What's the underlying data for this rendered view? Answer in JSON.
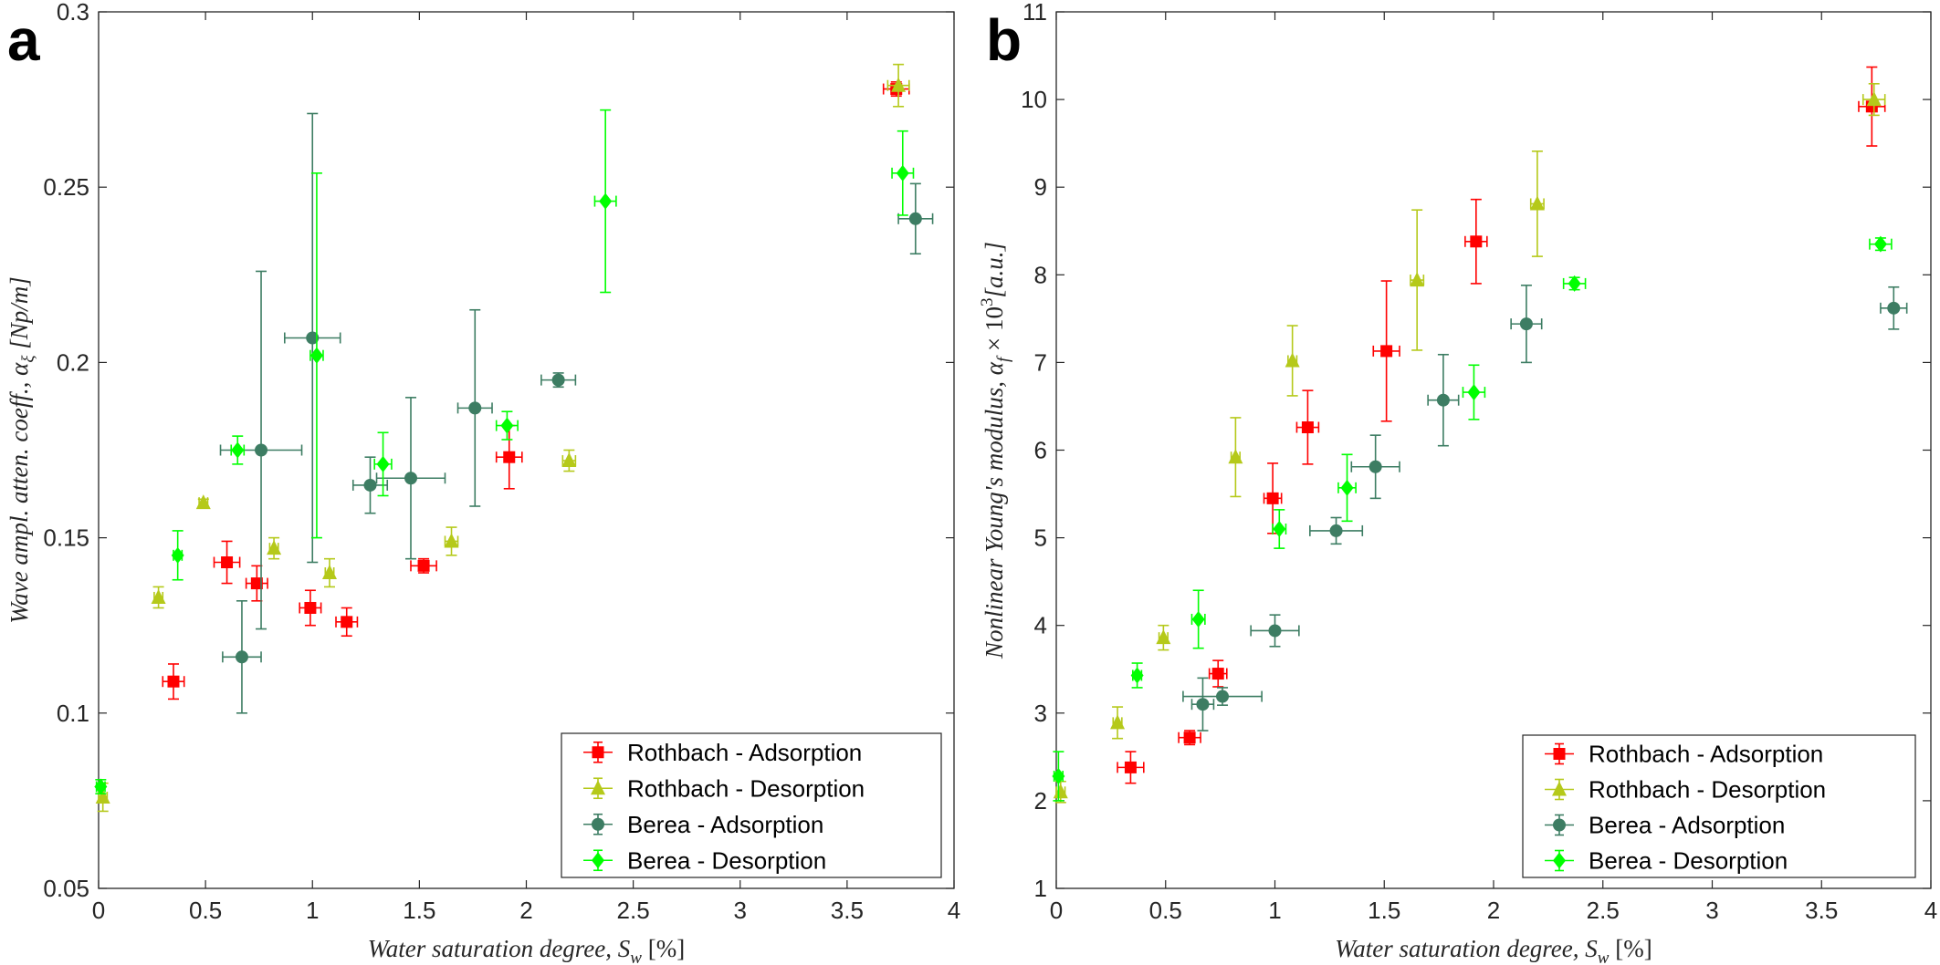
{
  "chart_data": [
    {
      "type": "scatter",
      "panel_label": "a",
      "ylabel_main": "Wave ampl. atten. coeff., ",
      "ylabel_symbol": "α",
      "ylabel_sub": "ξ",
      "ylabel_unit": " [Np/m]",
      "xlabel_main": "Water saturation degree, ",
      "xlabel_symbol": "S",
      "xlabel_sub": "w",
      "xlabel_unit": " [%]",
      "xlim": [
        0,
        4
      ],
      "ylim": [
        0.05,
        0.3
      ],
      "xticks": [
        0,
        0.5,
        1,
        1.5,
        2,
        2.5,
        3,
        3.5,
        4
      ],
      "xtick_labels": [
        "0",
        "0.5",
        "1",
        "1.5",
        "2",
        "2.5",
        "3",
        "3.5",
        "4"
      ],
      "yticks": [
        0.05,
        0.1,
        0.15,
        0.2,
        0.25,
        0.3
      ],
      "ytick_labels": [
        "0.05",
        "0.1",
        "0.15",
        "0.2",
        "0.25",
        "0.3"
      ],
      "grid": false,
      "legend_position": "bottom-right",
      "series": [
        {
          "name": "Rothbach - Adsorption",
          "color": "#ff0000",
          "marker": "square",
          "points": [
            {
              "x": 0.35,
              "y": 0.109,
              "xerr": 0.05,
              "yerr": 0.005
            },
            {
              "x": 0.6,
              "y": 0.143,
              "xerr": 0.06,
              "yerr": 0.006
            },
            {
              "x": 0.74,
              "y": 0.137,
              "xerr": 0.05,
              "yerr": 0.005
            },
            {
              "x": 0.99,
              "y": 0.13,
              "xerr": 0.05,
              "yerr": 0.005
            },
            {
              "x": 1.16,
              "y": 0.126,
              "xerr": 0.05,
              "yerr": 0.004
            },
            {
              "x": 1.52,
              "y": 0.142,
              "xerr": 0.06,
              "yerr": 0.002
            },
            {
              "x": 1.92,
              "y": 0.173,
              "xerr": 0.06,
              "yerr": 0.009
            },
            {
              "x": 3.73,
              "y": 0.278,
              "xerr": 0.06,
              "yerr": 0.002
            }
          ]
        },
        {
          "name": "Rothbach - Desorption",
          "color": "#b5c91a",
          "marker": "triangle",
          "points": [
            {
              "x": 0.02,
              "y": 0.076,
              "xerr": 0.02,
              "yerr": 0.004
            },
            {
              "x": 0.28,
              "y": 0.133,
              "xerr": 0.02,
              "yerr": 0.003
            },
            {
              "x": 0.49,
              "y": 0.16,
              "xerr": 0.02,
              "yerr": 0.001
            },
            {
              "x": 0.82,
              "y": 0.147,
              "xerr": 0.02,
              "yerr": 0.003
            },
            {
              "x": 1.08,
              "y": 0.14,
              "xerr": 0.02,
              "yerr": 0.004
            },
            {
              "x": 1.65,
              "y": 0.149,
              "xerr": 0.03,
              "yerr": 0.004
            },
            {
              "x": 2.2,
              "y": 0.172,
              "xerr": 0.03,
              "yerr": 0.003
            },
            {
              "x": 3.74,
              "y": 0.279,
              "xerr": 0.05,
              "yerr": 0.006
            }
          ]
        },
        {
          "name": "Berea - Adsorption",
          "color": "#3d7d63",
          "marker": "circle",
          "points": [
            {
              "x": 0.67,
              "y": 0.116,
              "xerr": 0.09,
              "yerr": 0.016
            },
            {
              "x": 0.76,
              "y": 0.175,
              "xerr": 0.19,
              "yerr": 0.051
            },
            {
              "x": 1.0,
              "y": 0.207,
              "xerr": 0.13,
              "yerr": 0.064
            },
            {
              "x": 1.27,
              "y": 0.165,
              "xerr": 0.08,
              "yerr": 0.008
            },
            {
              "x": 1.46,
              "y": 0.167,
              "xerr": 0.16,
              "yerr": 0.023
            },
            {
              "x": 1.76,
              "y": 0.187,
              "xerr": 0.08,
              "yerr": 0.028
            },
            {
              "x": 2.15,
              "y": 0.195,
              "xerr": 0.08,
              "yerr": 0.002
            },
            {
              "x": 3.82,
              "y": 0.241,
              "xerr": 0.08,
              "yerr": 0.01
            }
          ]
        },
        {
          "name": "Berea - Desorption",
          "color": "#00ff00",
          "marker": "diamond",
          "points": [
            {
              "x": 0.01,
              "y": 0.079,
              "xerr": 0.02,
              "yerr": 0.002
            },
            {
              "x": 0.37,
              "y": 0.145,
              "xerr": 0.02,
              "yerr": 0.007
            },
            {
              "x": 0.65,
              "y": 0.175,
              "xerr": 0.03,
              "yerr": 0.004
            },
            {
              "x": 1.02,
              "y": 0.202,
              "xerr": 0.03,
              "yerr": 0.052
            },
            {
              "x": 1.33,
              "y": 0.171,
              "xerr": 0.04,
              "yerr": 0.009
            },
            {
              "x": 1.91,
              "y": 0.182,
              "xerr": 0.05,
              "yerr": 0.004
            },
            {
              "x": 2.37,
              "y": 0.246,
              "xerr": 0.05,
              "yerr": 0.026
            },
            {
              "x": 3.76,
              "y": 0.254,
              "xerr": 0.05,
              "yerr": 0.012
            }
          ]
        }
      ]
    },
    {
      "type": "scatter",
      "panel_label": "b",
      "ylabel_main": "Nonlinear Young's modulus, ",
      "ylabel_symbol": "α",
      "ylabel_sub": "f",
      "ylabel_mid": " × 10",
      "ylabel_sup": "3",
      "ylabel_unit": "[a.u.]",
      "xlabel_main": "Water saturation degree, ",
      "xlabel_symbol": "S",
      "xlabel_sub": "w",
      "xlabel_unit": " [%]",
      "xlim": [
        0,
        4
      ],
      "ylim": [
        1,
        11
      ],
      "xticks": [
        0,
        0.5,
        1,
        1.5,
        2,
        2.5,
        3,
        3.5,
        4
      ],
      "xtick_labels": [
        "0",
        "0.5",
        "1",
        "1.5",
        "2",
        "2.5",
        "3",
        "3.5",
        "4"
      ],
      "yticks": [
        1,
        2,
        3,
        4,
        5,
        6,
        7,
        8,
        9,
        10,
        11
      ],
      "ytick_labels": [
        "1",
        "2",
        "3",
        "4",
        "5",
        "6",
        "7",
        "8",
        "9",
        "10",
        "11"
      ],
      "grid": false,
      "legend_position": "bottom-right",
      "series": [
        {
          "name": "Rothbach - Adsorption",
          "color": "#ff0000",
          "marker": "square",
          "points": [
            {
              "x": 0.34,
              "y": 2.38,
              "xerr": 0.06,
              "yerr": 0.18
            },
            {
              "x": 0.61,
              "y": 2.72,
              "xerr": 0.05,
              "yerr": 0.08
            },
            {
              "x": 0.74,
              "y": 3.45,
              "xerr": 0.04,
              "yerr": 0.15
            },
            {
              "x": 0.99,
              "y": 5.45,
              "xerr": 0.04,
              "yerr": 0.4
            },
            {
              "x": 1.15,
              "y": 6.26,
              "xerr": 0.05,
              "yerr": 0.42
            },
            {
              "x": 1.51,
              "y": 7.13,
              "xerr": 0.06,
              "yerr": 0.8
            },
            {
              "x": 1.92,
              "y": 8.38,
              "xerr": 0.05,
              "yerr": 0.48
            },
            {
              "x": 3.73,
              "y": 9.92,
              "xerr": 0.06,
              "yerr": 0.45
            }
          ]
        },
        {
          "name": "Rothbach - Desorption",
          "color": "#b5c91a",
          "marker": "triangle",
          "points": [
            {
              "x": 0.02,
              "y": 2.1,
              "xerr": 0.02,
              "yerr": 0.12
            },
            {
              "x": 0.28,
              "y": 2.89,
              "xerr": 0.02,
              "yerr": 0.18
            },
            {
              "x": 0.49,
              "y": 3.86,
              "xerr": 0.02,
              "yerr": 0.14
            },
            {
              "x": 0.82,
              "y": 5.92,
              "xerr": 0.02,
              "yerr": 0.45
            },
            {
              "x": 1.08,
              "y": 7.02,
              "xerr": 0.02,
              "yerr": 0.4
            },
            {
              "x": 1.65,
              "y": 7.94,
              "xerr": 0.03,
              "yerr": 0.8
            },
            {
              "x": 2.2,
              "y": 8.81,
              "xerr": 0.03,
              "yerr": 0.6
            },
            {
              "x": 3.74,
              "y": 10.0,
              "xerr": 0.05,
              "yerr": 0.18
            }
          ]
        },
        {
          "name": "Berea - Adsorption",
          "color": "#3d7d63",
          "marker": "circle",
          "points": [
            {
              "x": 0.67,
              "y": 3.1,
              "xerr": 0.05,
              "yerr": 0.3
            },
            {
              "x": 0.76,
              "y": 3.19,
              "xerr": 0.18,
              "yerr": 0.1
            },
            {
              "x": 1.0,
              "y": 3.94,
              "xerr": 0.11,
              "yerr": 0.18
            },
            {
              "x": 1.28,
              "y": 5.08,
              "xerr": 0.12,
              "yerr": 0.15
            },
            {
              "x": 1.46,
              "y": 5.81,
              "xerr": 0.11,
              "yerr": 0.36
            },
            {
              "x": 1.77,
              "y": 6.57,
              "xerr": 0.07,
              "yerr": 0.52
            },
            {
              "x": 2.15,
              "y": 7.44,
              "xerr": 0.07,
              "yerr": 0.44
            },
            {
              "x": 3.83,
              "y": 7.62,
              "xerr": 0.06,
              "yerr": 0.24
            }
          ]
        },
        {
          "name": "Berea - Desorption",
          "color": "#00ff00",
          "marker": "diamond",
          "points": [
            {
              "x": 0.01,
              "y": 2.28,
              "xerr": 0.02,
              "yerr": 0.28
            },
            {
              "x": 0.37,
              "y": 3.43,
              "xerr": 0.02,
              "yerr": 0.14
            },
            {
              "x": 0.65,
              "y": 4.07,
              "xerr": 0.03,
              "yerr": 0.33
            },
            {
              "x": 1.02,
              "y": 5.1,
              "xerr": 0.03,
              "yerr": 0.22
            },
            {
              "x": 1.33,
              "y": 5.57,
              "xerr": 0.04,
              "yerr": 0.38
            },
            {
              "x": 1.91,
              "y": 6.66,
              "xerr": 0.05,
              "yerr": 0.31
            },
            {
              "x": 2.37,
              "y": 7.9,
              "xerr": 0.05,
              "yerr": 0.07
            },
            {
              "x": 3.77,
              "y": 8.35,
              "xerr": 0.05,
              "yerr": 0.07
            }
          ]
        }
      ]
    }
  ]
}
